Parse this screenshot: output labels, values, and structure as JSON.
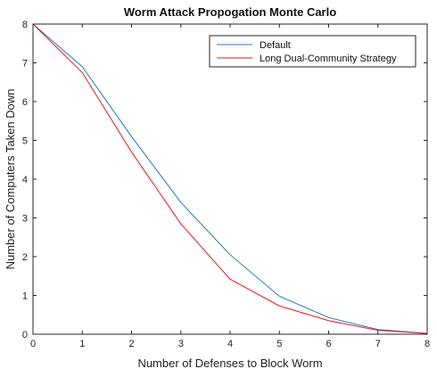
{
  "chart_data": {
    "type": "line",
    "title": "Worm Attack Propogation Monte Carlo",
    "xlabel": "Number of Defenses to Block Worm",
    "ylabel": "Number of Computers Taken Down",
    "xlim": [
      0,
      8
    ],
    "ylim": [
      0,
      8
    ],
    "xticks": [
      0,
      1,
      2,
      3,
      4,
      5,
      6,
      7,
      8
    ],
    "yticks": [
      0,
      1,
      2,
      3,
      4,
      5,
      6,
      7,
      8
    ],
    "grid": false,
    "legend_position": "top-right",
    "series": [
      {
        "name": "Default",
        "color": "#1f77c4",
        "x": [
          0,
          1,
          2,
          3,
          4,
          5,
          6,
          7,
          8
        ],
        "y": [
          8,
          6.9,
          5.1,
          3.4,
          2.05,
          0.98,
          0.43,
          0.12,
          0.02
        ]
      },
      {
        "name": "Long Dual-Community Strategy",
        "color": "#e8191e",
        "x": [
          0,
          1,
          2,
          3,
          4,
          5,
          6,
          7,
          8
        ],
        "y": [
          8,
          6.75,
          4.7,
          2.85,
          1.42,
          0.73,
          0.35,
          0.1,
          0.02
        ]
      }
    ]
  }
}
